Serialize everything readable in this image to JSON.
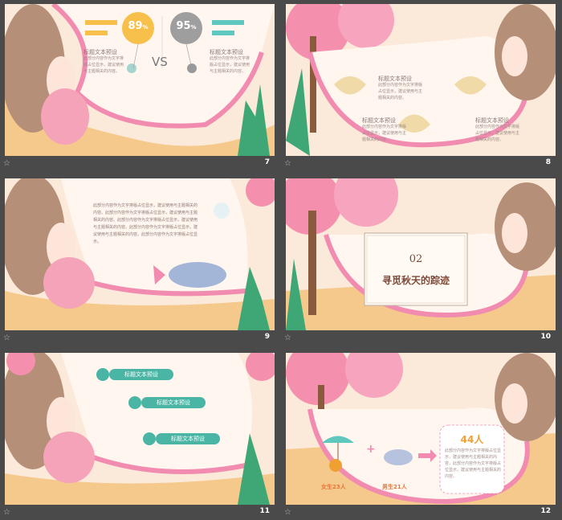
{
  "slides": [
    {
      "number": "7",
      "percent_left": "89",
      "percent_right": "95",
      "pct_sign": "%",
      "vs": "VS",
      "title_left": "标题文本预设",
      "title_right": "标题文本预设",
      "body_left": "此部分内容作为文字排版占位显示，建议使用与主题相关的内容。",
      "body_right": "此部分内容作为文字排版占位显示，建议使用与主题相关的内容。"
    },
    {
      "number": "8",
      "titles": [
        "标题文本预设",
        "标题文本预设",
        "标题文本预设"
      ],
      "body": "此部分内容作为文字排版占位显示，建议使用与主题相关的内容。"
    },
    {
      "number": "9",
      "paragraph": "此部分内容作为文字排版占位显示，建议使用与主题相关的内容。此部分内容作为文字排版占位显示，建议使用与主题相关的内容。此部分内容作为文字排版占位显示，建议使用与主题相关的内容。此部分内容作为文字排版占位显示，建议使用与主题相关的内容。此部分内容作为文字排版占位显示。"
    },
    {
      "number": "10",
      "section_number": "02",
      "section_title": "寻觅秋天的踪迹"
    },
    {
      "number": "11",
      "buttons": [
        "标题文本预设",
        "标题文本预设",
        "标题文本预设"
      ]
    },
    {
      "number": "12",
      "female_label": "女生23人",
      "male_label": "男生21人",
      "total": "44人",
      "plus": "+",
      "description": "此部分内容作为文字排版占位显示，建议使用与主题相关的内容，此部分内容作为文字排版占位显示，建议使用与主题相关的内容。"
    }
  ],
  "star_icon": "☆",
  "colors": {
    "pink": "#f28bb0",
    "teal": "#4ab5a4",
    "orange": "#f0a033",
    "frame_bg": "#4a4a4a"
  }
}
